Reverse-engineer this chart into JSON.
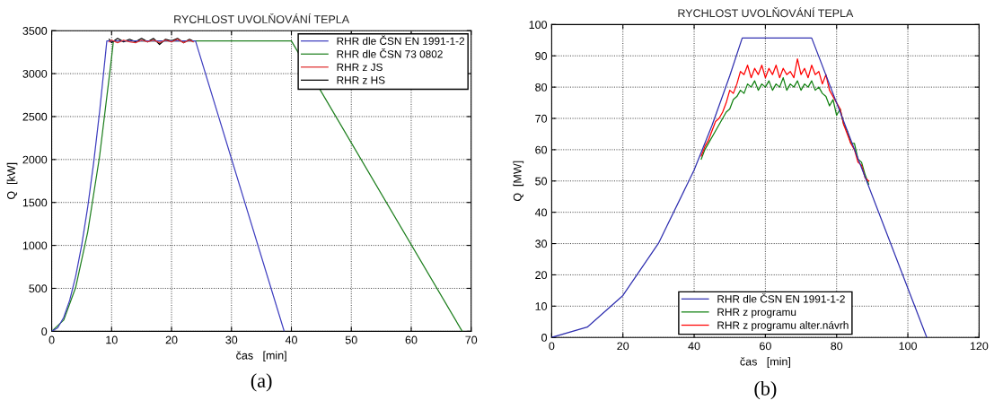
{
  "chart_data": [
    {
      "type": "line",
      "title": "RYCHLOST UVOLŇOVÁNÍ TEPLA",
      "xlabel": "čas   [min]",
      "ylabel": "Q  [kW]",
      "xlim": [
        0,
        70
      ],
      "xticks": [
        0,
        10,
        20,
        30,
        40,
        50,
        60,
        70
      ],
      "ylim": [
        0,
        3500
      ],
      "yticks": [
        0,
        500,
        1000,
        1500,
        2000,
        2500,
        3000,
        3500
      ],
      "grid": true,
      "legend": "top right",
      "line_style": "solid",
      "annotations": [
        "(a)"
      ],
      "series": [
        {
          "name": "RHR dle ČSN EN 1991-1-2",
          "color": "#4040c0",
          "x": [
            0,
            1,
            2,
            3,
            4,
            5,
            6,
            7,
            8,
            9,
            9.2,
            24,
            38.8
          ],
          "values": [
            0,
            40,
            160,
            360,
            640,
            1000,
            1440,
            1960,
            2560,
            3240,
            3380,
            3380,
            0
          ]
        },
        {
          "name": "RHR dle ČSN 73 0802",
          "color": "#208020",
          "x": [
            0,
            2,
            4,
            6,
            8,
            10,
            10.3,
            40,
            68.5
          ],
          "values": [
            0,
            130,
            510,
            1150,
            2040,
            3190,
            3380,
            3380,
            0
          ]
        },
        {
          "name": "RHR z JS",
          "color": "#e03030",
          "x": [
            9.6,
            10,
            11,
            12,
            13,
            14,
            15,
            16,
            17,
            18,
            19,
            20,
            21,
            22,
            23,
            23.6
          ],
          "values": [
            3370,
            3390,
            3360,
            3390,
            3370,
            3360,
            3390,
            3370,
            3390,
            3360,
            3390,
            3370,
            3400,
            3360,
            3390,
            3370
          ]
        },
        {
          "name": "RHR z HS",
          "color": "#000000",
          "x": [
            9.6,
            10,
            11,
            12,
            13,
            14,
            15,
            16,
            17,
            18,
            19,
            20,
            21,
            22,
            23,
            23.6
          ],
          "values": [
            3400,
            3360,
            3410,
            3370,
            3400,
            3370,
            3410,
            3370,
            3410,
            3340,
            3400,
            3380,
            3410,
            3360,
            3400,
            3380
          ]
        }
      ]
    },
    {
      "type": "line",
      "title": "RYCHLOST UVOLŇOVÁNÍ TEPLA",
      "xlabel": "čas   [min]",
      "ylabel": "Q  [MW]",
      "xlim": [
        0,
        120
      ],
      "xticks": [
        0,
        20,
        40,
        60,
        80,
        100,
        120
      ],
      "ylim": [
        0,
        100
      ],
      "yticks": [
        0,
        10,
        20,
        30,
        40,
        50,
        60,
        70,
        80,
        90,
        100
      ],
      "grid": true,
      "legend": "bottom",
      "line_style": "solid",
      "annotations": [
        "(b)"
      ],
      "series": [
        {
          "name": "RHR dle ČSN EN 1991-1-2",
          "color": "#3030b0",
          "x": [
            0,
            10,
            20,
            30,
            40,
            45,
            50,
            53.5,
            73,
            105.3
          ],
          "values": [
            0,
            3.3,
            13.4,
            30.1,
            53.5,
            67.7,
            83.6,
            95.7,
            95.7,
            0
          ]
        },
        {
          "name": "RHR z programu",
          "color": "#108010",
          "x": [
            42,
            43,
            44,
            45,
            46,
            47,
            48,
            49,
            50,
            51,
            52,
            53,
            54,
            55,
            56,
            57,
            58,
            59,
            60,
            61,
            62,
            63,
            64,
            65,
            66,
            67,
            68,
            69,
            70,
            71,
            72,
            73,
            74,
            75,
            76,
            77,
            78,
            79,
            80,
            81,
            82,
            83,
            84,
            85,
            86,
            87,
            88,
            89
          ],
          "values": [
            57,
            60,
            62,
            64,
            66,
            68,
            70,
            72,
            73,
            76,
            77,
            79,
            78,
            81,
            80,
            82,
            79,
            81,
            80,
            82,
            79,
            81,
            80,
            83,
            79,
            81,
            80,
            82,
            79,
            81,
            80,
            82,
            79,
            80,
            78,
            77,
            74,
            76,
            71,
            73,
            68,
            66,
            62,
            62,
            57,
            56,
            52,
            49
          ]
        },
        {
          "name": "RHR z programu alter.návrh",
          "color": "#ff0000",
          "x": [
            42,
            43,
            44,
            45,
            46,
            47,
            48,
            49,
            50,
            51,
            52,
            53,
            54,
            55,
            56,
            57,
            58,
            59,
            60,
            61,
            62,
            63,
            64,
            65,
            66,
            67,
            68,
            69,
            70,
            71,
            72,
            73,
            74,
            75,
            76,
            77,
            78,
            79,
            80,
            81,
            82,
            83,
            84,
            85,
            86,
            87,
            88,
            89
          ],
          "values": [
            58,
            61,
            63,
            66,
            69,
            70,
            72,
            75,
            79,
            78,
            81,
            85,
            84,
            87,
            83,
            86,
            84,
            87,
            83,
            86,
            84,
            87,
            83,
            86,
            84,
            85,
            83,
            89,
            84,
            86,
            83,
            87,
            84,
            85,
            81,
            84,
            79,
            77,
            75,
            73,
            68,
            65,
            62,
            60,
            56,
            55,
            51,
            50
          ]
        }
      ]
    }
  ]
}
